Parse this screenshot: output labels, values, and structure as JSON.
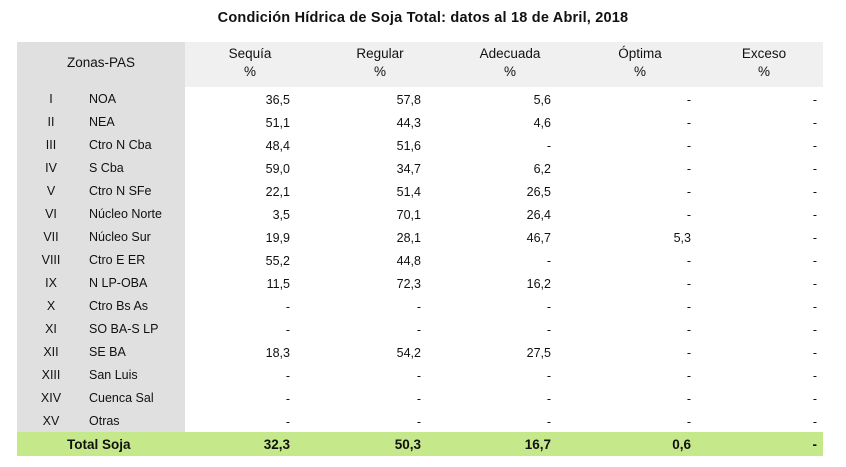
{
  "title": "Condición Hídrica de Soja Total: datos al 18 de Abril, 2018",
  "header": {
    "zona": "Zonas-PAS",
    "cols": [
      {
        "name": "Sequía",
        "unit": "%"
      },
      {
        "name": "Regular",
        "unit": "%"
      },
      {
        "name": "Adecuada",
        "unit": "%"
      },
      {
        "name": "Óptima",
        "unit": "%"
      },
      {
        "name": "Exceso",
        "unit": "%"
      }
    ]
  },
  "rows": [
    {
      "roman": "I",
      "zone": "NOA",
      "v": [
        "36,5",
        "57,8",
        "5,6",
        "-",
        "-"
      ]
    },
    {
      "roman": "II",
      "zone": "NEA",
      "v": [
        "51,1",
        "44,3",
        "4,6",
        "-",
        "-"
      ]
    },
    {
      "roman": "III",
      "zone": "Ctro N Cba",
      "v": [
        "48,4",
        "51,6",
        "-",
        "-",
        "-"
      ]
    },
    {
      "roman": "IV",
      "zone": "S Cba",
      "v": [
        "59,0",
        "34,7",
        "6,2",
        "-",
        "-"
      ]
    },
    {
      "roman": "V",
      "zone": "Ctro N SFe",
      "v": [
        "22,1",
        "51,4",
        "26,5",
        "-",
        "-"
      ]
    },
    {
      "roman": "VI",
      "zone": "Núcleo Norte",
      "v": [
        "3,5",
        "70,1",
        "26,4",
        "-",
        "-"
      ]
    },
    {
      "roman": "VII",
      "zone": "Núcleo Sur",
      "v": [
        "19,9",
        "28,1",
        "46,7",
        "5,3",
        "-"
      ]
    },
    {
      "roman": "VIII",
      "zone": "Ctro E ER",
      "v": [
        "55,2",
        "44,8",
        "-",
        "-",
        "-"
      ]
    },
    {
      "roman": "IX",
      "zone": "N LP-OBA",
      "v": [
        "11,5",
        "72,3",
        "16,2",
        "-",
        "-"
      ]
    },
    {
      "roman": "X",
      "zone": "Ctro Bs As",
      "v": [
        "-",
        "-",
        "-",
        "-",
        "-"
      ]
    },
    {
      "roman": "XI",
      "zone": "SO BA-S LP",
      "v": [
        "-",
        "-",
        "-",
        "-",
        "-"
      ]
    },
    {
      "roman": "XII",
      "zone": "SE BA",
      "v": [
        "18,3",
        "54,2",
        "27,5",
        "-",
        "-"
      ]
    },
    {
      "roman": "XIII",
      "zone": "San Luis",
      "v": [
        "-",
        "-",
        "-",
        "-",
        "-"
      ]
    },
    {
      "roman": "XIV",
      "zone": "Cuenca Sal",
      "v": [
        "-",
        "-",
        "-",
        "-",
        "-"
      ]
    },
    {
      "roman": "XV",
      "zone": "Otras",
      "v": [
        "-",
        "-",
        "-",
        "-",
        "-"
      ]
    }
  ],
  "total": {
    "label": "Total Soja",
    "v": [
      "32,3",
      "50,3",
      "16,7",
      "0,6",
      "-"
    ]
  },
  "colors": {
    "header_bg": "#f0f0f0",
    "zone_bg": "#e0e0e0",
    "total_bg": "#c5e88a"
  }
}
